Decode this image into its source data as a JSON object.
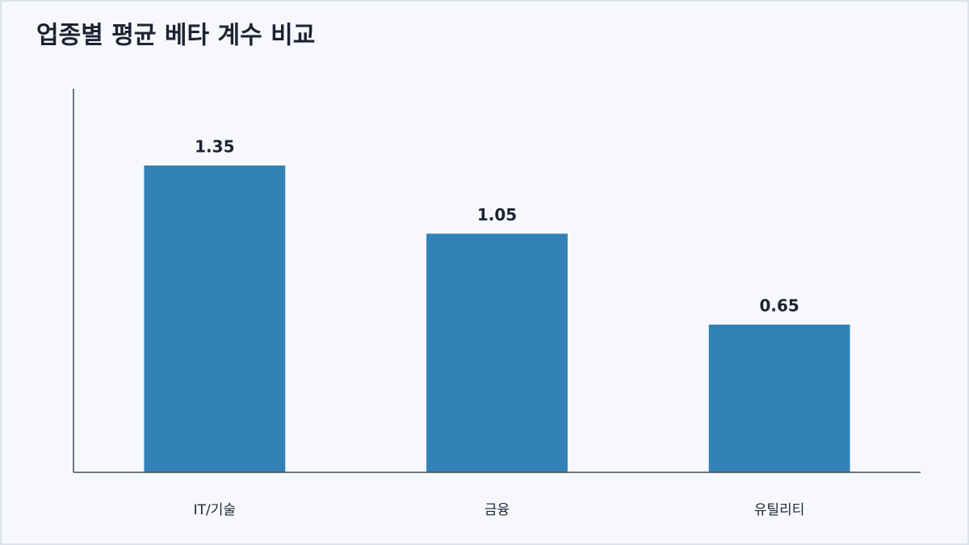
{
  "chart_data": {
    "type": "bar",
    "title": "업종별 평균 베타 계수 비교",
    "categories": [
      "IT/기술",
      "금융",
      "유틸리티"
    ],
    "values": [
      1.35,
      1.05,
      0.65
    ],
    "color": "#3282b8",
    "ylim": [
      0,
      1.6875
    ]
  }
}
